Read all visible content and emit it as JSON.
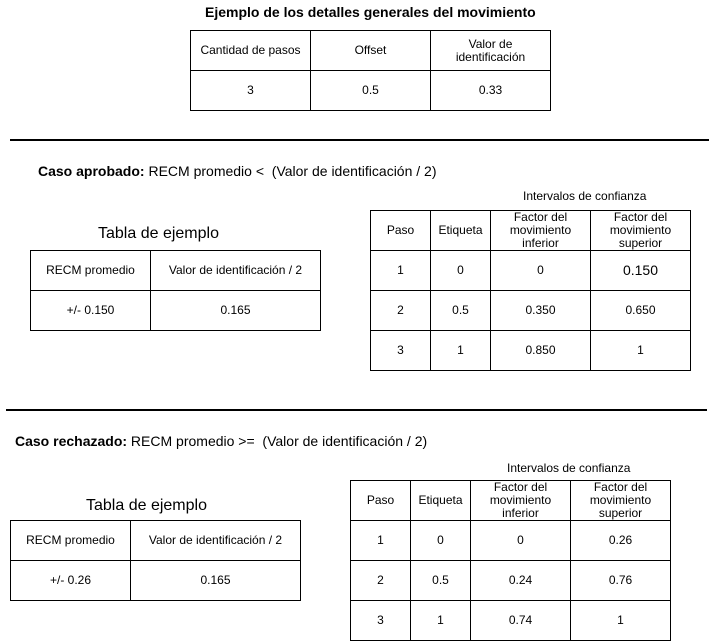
{
  "general": {
    "title": "Ejemplo de los detalles generales del movimiento",
    "headers": [
      "Cantidad de pasos",
      "Offset",
      "Valor de identificación"
    ],
    "values": [
      "3",
      "0.5",
      "0.33"
    ]
  },
  "approved": {
    "label_bold": "Caso aprobado:",
    "label_rest": " RECM promedio <  (Valor de identificación / 2)",
    "example_caption": "Tabla de ejemplo",
    "example_headers": [
      "RECM promedio",
      "Valor de identificación / 2"
    ],
    "example_values": [
      "+/- 0.150",
      "0.165"
    ],
    "intervals_caption": "Intervalos de confianza",
    "intervals_headers": [
      "Paso",
      "Etiqueta",
      "Factor del movimiento inferior",
      "Factor del movimiento superior"
    ],
    "intervals_rows": [
      [
        "1",
        "0",
        "0",
        "0.150"
      ],
      [
        "2",
        "0.5",
        "0.350",
        "0.650"
      ],
      [
        "3",
        "1",
        "0.850",
        "1"
      ]
    ]
  },
  "rejected": {
    "label_bold": "Caso rechazado:",
    "label_rest": " RECM promedio >=  (Valor de identificación / 2)",
    "example_caption": "Tabla de ejemplo",
    "example_headers": [
      "RECM promedio",
      "Valor de identificación / 2"
    ],
    "example_values": [
      "+/- 0.26",
      "0.165"
    ],
    "intervals_caption": "Intervalos de confianza",
    "intervals_headers": [
      "Paso",
      "Etiqueta",
      "Factor del movimiento inferior",
      "Factor del movimiento superior"
    ],
    "intervals_rows": [
      [
        "1",
        "0",
        "0",
        "0.26"
      ],
      [
        "2",
        "0.5",
        "0.24",
        "0.76"
      ],
      [
        "3",
        "1",
        "0.74",
        "1"
      ]
    ]
  }
}
